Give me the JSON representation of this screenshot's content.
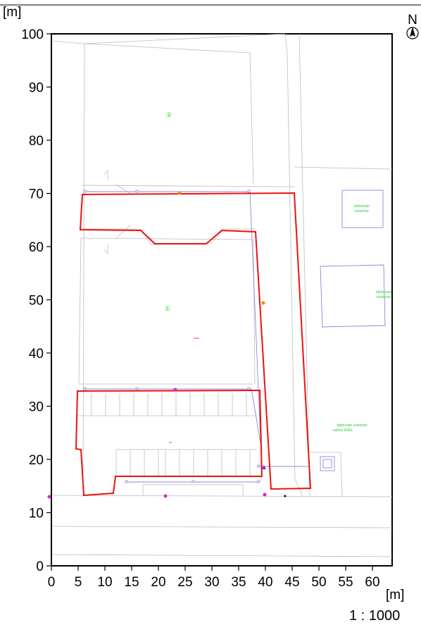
{
  "map": {
    "units_top": "[m]",
    "units_bottom": "[m]",
    "scale": "1 : 1000",
    "north": "N",
    "x_ticks": [
      "0",
      "5",
      "10",
      "15",
      "20",
      "25",
      "30",
      "35",
      "40",
      "45",
      "50",
      "55",
      "60"
    ],
    "y_ticks": [
      "100",
      "90",
      "80",
      "70",
      "60",
      "50",
      "40",
      "30",
      "20",
      "10",
      "0"
    ],
    "zone_labels": [
      "②",
      "①"
    ],
    "building_notes": {
      "b1": [
        "fabbricato",
        "esistente"
      ],
      "b2": [
        "fabbricato",
        "esistente"
      ],
      "b3": [
        "fabbricato esistente",
        "cabina ENEL"
      ]
    },
    "colors": {
      "boundary": "#ee1111",
      "lines": "#bbbbbb",
      "existing_buildings": "#8888dd",
      "notes": "#33cc33",
      "points_magenta": "#dd22dd",
      "points_orange": "#ee8800"
    }
  }
}
